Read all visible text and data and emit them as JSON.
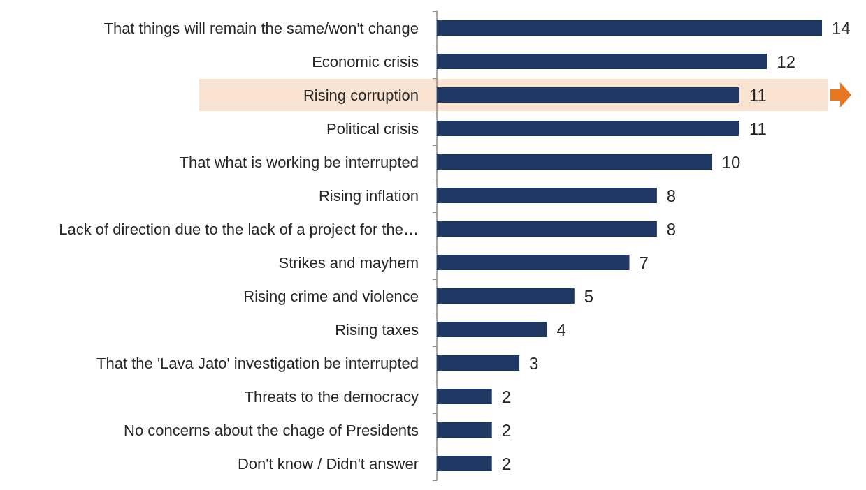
{
  "chart_data": {
    "type": "bar",
    "orientation": "horizontal",
    "data_labels": true,
    "categories": [
      "That things will remain the same/won't change",
      "Economic crisis",
      "Rising corruption",
      "Political crisis",
      "That what is working be interrupted",
      "Rising inflation",
      "Lack of direction due to the lack of a project for the…",
      "Strikes and mayhem",
      "Rising crime and violence",
      "Rising taxes",
      "That the 'Lava Jato' investigation be interrupted",
      "Threats to the democracy",
      "No concerns about the chage of Presidents",
      "Don't know / Didn't answer"
    ],
    "values": [
      14,
      12,
      11,
      11,
      10,
      8,
      8,
      7,
      5,
      4,
      3,
      2,
      2,
      2
    ],
    "color": "#1f3864",
    "bands": [
      {
        "axis": "y",
        "from": "Rising corruption",
        "to": "Rising corruption",
        "color": "#fbe3d1"
      }
    ]
  }
}
